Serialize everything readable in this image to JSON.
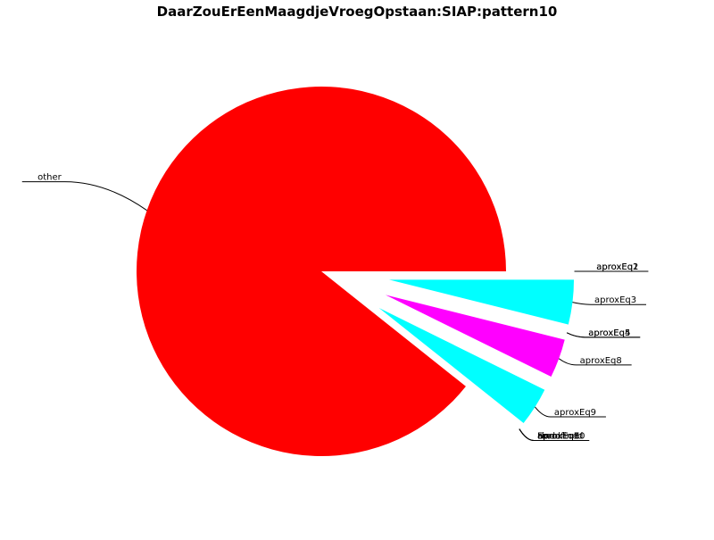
{
  "chart_data": {
    "type": "pie",
    "title": "DaarZouErEenMaagdjeVroegOpstaan:SIAP:pattern10",
    "colors": {
      "other": "#ff0000",
      "cyan": "#00ffff",
      "magenta": "#ff00ff"
    },
    "slices": [
      {
        "label": "other",
        "value": 0.893,
        "color": "#ff0000",
        "explode": false
      },
      {
        "label": "Fixed",
        "value": 0.0,
        "color": "#00ffff",
        "explode": true
      },
      {
        "label": "Undefined",
        "value": 0.0,
        "color": "#00ffff",
        "explode": true
      },
      {
        "label": "aproxEq7",
        "value": 0.0,
        "color": "#00ffff",
        "explode": true
      },
      {
        "label": "aproxEq6",
        "value": 0.0,
        "color": "#00ffff",
        "explode": true
      },
      {
        "label": "aproxEq10",
        "value": 0.0,
        "color": "#00ffff",
        "explode": true
      },
      {
        "label": "aproxEq9",
        "value": 0.034,
        "color": "#00ffff",
        "explode": true
      },
      {
        "label": "aproxEq8",
        "value": 0.034,
        "color": "#ff00ff",
        "explode": true
      },
      {
        "label": "aproxEq5",
        "value": 0.0,
        "color": "#00ffff",
        "explode": true
      },
      {
        "label": "aproxEq4",
        "value": 0.0,
        "color": "#00ffff",
        "explode": true
      },
      {
        "label": "aproxEq3",
        "value": 0.039,
        "color": "#00ffff",
        "explode": true
      },
      {
        "label": "aproxEq2",
        "value": 0.0,
        "color": "#00ffff",
        "explode": true
      },
      {
        "label": "aproxEq1",
        "value": 0.0,
        "color": "#00ffff",
        "explode": true
      }
    ]
  }
}
